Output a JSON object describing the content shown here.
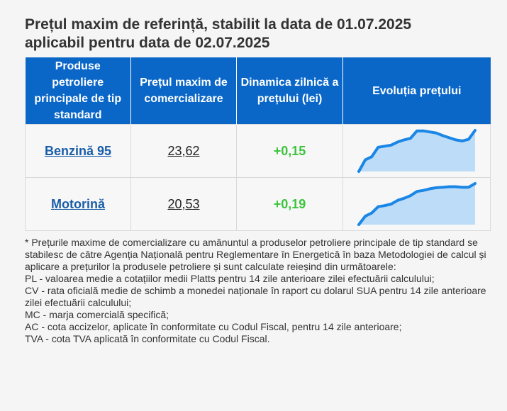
{
  "header": {
    "title_line1": "Prețul maxim de referință, stabilit la data de 01.07.2025",
    "title_line2": "aplicabil pentru data de 02.07.2025"
  },
  "table": {
    "columns": [
      "Produse petroliere principale de tip standard",
      "Prețul maxim de comercializare",
      "Dinamica zilnică a prețului (lei)",
      "Evoluția prețului"
    ],
    "rows": [
      {
        "product": "Benzină 95",
        "price": "23,62",
        "delta": "+0,15",
        "trend": [
          0,
          2.2,
          2.8,
          4.6,
          4.8,
          5.0,
          5.6,
          6.0,
          6.3,
          7.7,
          7.7,
          7.5,
          7.3,
          6.8,
          6.4,
          6.0,
          5.8,
          6.1,
          7.8
        ]
      },
      {
        "product": "Motorină",
        "price": "20,53",
        "delta": "+0,19",
        "trend": [
          0,
          1.6,
          2.2,
          3.4,
          3.6,
          3.9,
          4.6,
          5.0,
          5.5,
          6.3,
          6.5,
          6.8,
          7.0,
          7.1,
          7.2,
          7.2,
          7.1,
          7.1,
          7.8
        ]
      }
    ]
  },
  "colors": {
    "header_bg": "#0a67c8",
    "line": "#1a86e6",
    "fill": "#bcdcf7",
    "delta": "#3cc43c",
    "link": "#1a5ea8"
  },
  "notes": [
    "* Prețurile maxime de comercializare cu amănuntul a produselor petroliere principale de tip standard se stabilesc de către Agenția Națională pentru Reglementare în Energetică în baza Metodologiei de calcul și aplicare a prețurilor la produsele petroliere și sunt calculate reieșind din următoarele:",
    "PL - valoarea medie a cotațiilor medii Platts pentru 14 zile anterioare zilei efectuării calculului;",
    "CV - rata oficială medie de schimb a monedei naționale în raport cu dolarul SUA pentru 14 zile anterioare zilei efectuării calculului;",
    "MC - marja comercială specifică;",
    "AC - cota accizelor, aplicate în conformitate cu Codul Fiscal, pentru 14 zile anterioare;",
    "TVA - cota TVA aplicată în conformitate cu Codul Fiscal."
  ]
}
